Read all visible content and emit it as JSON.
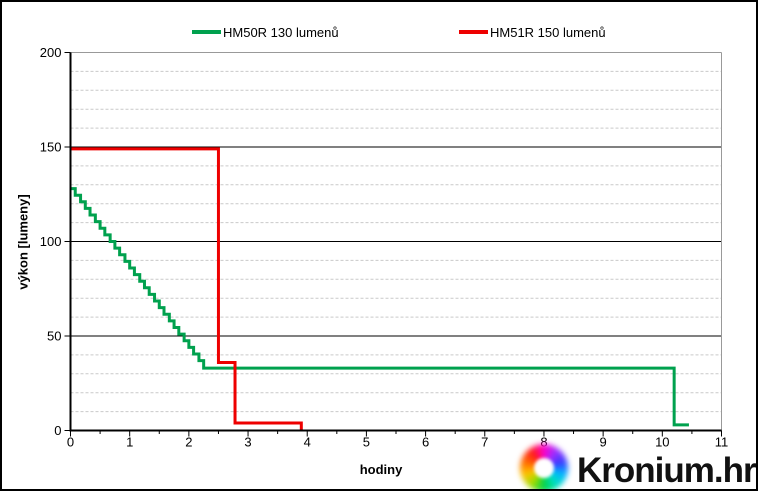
{
  "legend": {
    "items": [
      {
        "label": "HM50R 130 lumenů",
        "color": "#00a14e"
      },
      {
        "label": "HM51R 150 lumenů",
        "color": "#ee0000"
      }
    ]
  },
  "branding": {
    "text": "Kronium.hr"
  },
  "colors": {
    "grid_minor": "#c9c9c9",
    "grid_major": "#000000",
    "plot_border": "#999999",
    "axis": "#000000",
    "text": "#000000"
  },
  "chart_data": {
    "type": "line",
    "title": "",
    "xlabel": "hodiny",
    "ylabel": "výkon [lumeny]",
    "xlim": [
      0,
      11
    ],
    "ylim": [
      0,
      200
    ],
    "x_tick_labels": [
      "0",
      "1",
      "2",
      "3",
      "4",
      "5",
      "6",
      "7",
      "8",
      "9",
      "10",
      "11"
    ],
    "x_ticks": [
      0,
      1,
      2,
      3,
      4,
      5,
      6,
      7,
      8,
      9,
      10,
      11
    ],
    "x_minor_step": 0.5,
    "y_tick_labels": [
      "0",
      "50",
      "100",
      "150",
      "200"
    ],
    "y_ticks": [
      0,
      50,
      100,
      150,
      200
    ],
    "y_minor_step": 10,
    "grid": {
      "major": "solid",
      "minor": "dashed"
    },
    "legend_position": "top",
    "line_style": "step-after",
    "series": [
      {
        "name": "HM50R 130 lumenů",
        "color": "#00a14e",
        "points": [
          [
            0,
            128
          ],
          [
            0.08,
            124.5
          ],
          [
            0.17,
            121
          ],
          [
            0.25,
            117.5
          ],
          [
            0.33,
            114
          ],
          [
            0.42,
            110.5
          ],
          [
            0.5,
            107
          ],
          [
            0.58,
            103.5
          ],
          [
            0.67,
            100
          ],
          [
            0.75,
            96.5
          ],
          [
            0.83,
            93
          ],
          [
            0.92,
            89.5
          ],
          [
            1.0,
            86
          ],
          [
            1.08,
            82.5
          ],
          [
            1.17,
            79
          ],
          [
            1.25,
            75.5
          ],
          [
            1.33,
            72
          ],
          [
            1.42,
            68.5
          ],
          [
            1.5,
            65
          ],
          [
            1.58,
            61.5
          ],
          [
            1.67,
            58
          ],
          [
            1.75,
            54.5
          ],
          [
            1.83,
            51
          ],
          [
            1.92,
            47.5
          ],
          [
            2.0,
            44
          ],
          [
            2.08,
            40.5
          ],
          [
            2.17,
            37
          ],
          [
            2.25,
            33
          ],
          [
            10.2,
            3
          ],
          [
            10.45,
            3
          ]
        ]
      },
      {
        "name": "HM51R 150 lumenů",
        "color": "#ee0000",
        "points": [
          [
            0,
            149
          ],
          [
            2.5,
            36
          ],
          [
            2.78,
            4
          ],
          [
            3.9,
            0
          ]
        ]
      }
    ]
  }
}
